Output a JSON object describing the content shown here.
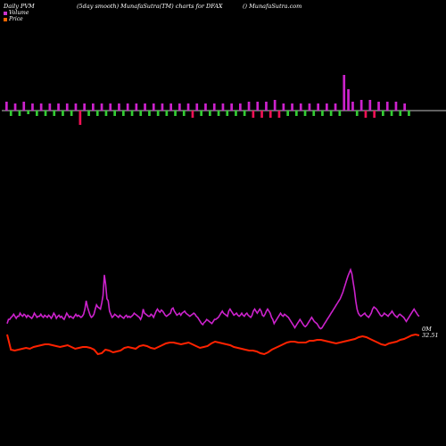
{
  "header": {
    "left": "Daily PVM",
    "center": "(5day smooth) MunafaSutra(TM) charts for DFAX",
    "right": "() MunafaSutra.com"
  },
  "legend": [
    {
      "label": "Volume",
      "color": "#cc33cc"
    },
    {
      "label": "Price",
      "color": "#ff6600"
    }
  ],
  "colors": {
    "up": "#cc22cc",
    "down": "#33cc33",
    "alt_down": "#ee1155",
    "volume_line": "#cc22cc",
    "price_line": "#ff2200"
  },
  "chart_data": {
    "type": "line",
    "series": [
      {
        "name": "Volume",
        "values": [
          48,
          52,
          52,
          54,
          55,
          57,
          55,
          53,
          55,
          55,
          58,
          56,
          55,
          57,
          56,
          54,
          56,
          55,
          54,
          53,
          55,
          58,
          56,
          54,
          55,
          55,
          57,
          55,
          54,
          56,
          55,
          54,
          56,
          55,
          53,
          55,
          58,
          56,
          53,
          55,
          56,
          54,
          55,
          53,
          52,
          55,
          58,
          56,
          54,
          55,
          54,
          53,
          55,
          57,
          55,
          56,
          55,
          54,
          55,
          57,
          62,
          70,
          64,
          60,
          56,
          54,
          55,
          57,
          62,
          66,
          64,
          63,
          62,
          68,
          75,
          95,
          86,
          72,
          70,
          60,
          57,
          54,
          55,
          57,
          56,
          55,
          54,
          56,
          55,
          54,
          53,
          55,
          56,
          54,
          55,
          54,
          55,
          56,
          58,
          57,
          56,
          55,
          54,
          52,
          55,
          62,
          58,
          57,
          56,
          55,
          55,
          57,
          56,
          54,
          57,
          60,
          62,
          60,
          59,
          61,
          60,
          58,
          56,
          55,
          56,
          57,
          58,
          62,
          63,
          60,
          58,
          56,
          57,
          58,
          56,
          58,
          59,
          60,
          58,
          57,
          56,
          55,
          56,
          57,
          58,
          57,
          55,
          54,
          52,
          50,
          48,
          47,
          49,
          50,
          52,
          51,
          50,
          49,
          48,
          50,
          52,
          52,
          53,
          54,
          56,
          58,
          60,
          58,
          57,
          56,
          55,
          60,
          62,
          60,
          58,
          56,
          57,
          58,
          56,
          55,
          56,
          58,
          56,
          55,
          57,
          58,
          56,
          55,
          54,
          56,
          60,
          62,
          60,
          58,
          60,
          62,
          60,
          56,
          55,
          57,
          60,
          62,
          60,
          58,
          54,
          52,
          48,
          50,
          52,
          54,
          56,
          58,
          56,
          55,
          57,
          56,
          55,
          54,
          52,
          50,
          48,
          46,
          44,
          46,
          48,
          50,
          52,
          50,
          48,
          46,
          45,
          46,
          48,
          50,
          52,
          54,
          52,
          50,
          49,
          48,
          46,
          44,
          43,
          44,
          46,
          48,
          50,
          52,
          54,
          56,
          58,
          60,
          62,
          64,
          66,
          68,
          70,
          72,
          75,
          78,
          82,
          86,
          90,
          94,
          97,
          100,
          96,
          88,
          80,
          70,
          62,
          58,
          56,
          55,
          56,
          57,
          58,
          56,
          55,
          54,
          56,
          58,
          62,
          64,
          63,
          62,
          60,
          58,
          56,
          55,
          56,
          58,
          57,
          56,
          55,
          57,
          58,
          60,
          58,
          56,
          55,
          54,
          56,
          57,
          56,
          55,
          54,
          52,
          50,
          52,
          54,
          56,
          58,
          60,
          62,
          60,
          58,
          56,
          55
        ]
      }
    ],
    "volume_bars": [
      {
        "v": 5,
        "up": true
      },
      {
        "v": 3,
        "up": false
      },
      {
        "v": 4,
        "up": true
      },
      {
        "v": 3,
        "up": false
      },
      {
        "v": 5,
        "up": true
      },
      {
        "v": 2,
        "up": false
      },
      {
        "v": 4,
        "up": true
      },
      {
        "v": 3,
        "up": false
      },
      {
        "v": 4,
        "up": true
      },
      {
        "v": 3,
        "up": false
      },
      {
        "v": 4,
        "up": true
      },
      {
        "v": 3,
        "up": false
      },
      {
        "v": 4,
        "up": true
      },
      {
        "v": 3,
        "up": false
      },
      {
        "v": 4,
        "up": true
      },
      {
        "v": 3,
        "up": false
      },
      {
        "v": 4,
        "up": true
      },
      {
        "v": 8,
        "down_red": true
      },
      {
        "v": 4,
        "up": true
      },
      {
        "v": 3,
        "up": false
      },
      {
        "v": 4,
        "up": true
      },
      {
        "v": 3,
        "up": false
      },
      {
        "v": 4,
        "up": true
      },
      {
        "v": 3,
        "up": false
      },
      {
        "v": 4,
        "up": true
      },
      {
        "v": 3,
        "up": false
      },
      {
        "v": 4,
        "up": true
      },
      {
        "v": 3,
        "up": false
      },
      {
        "v": 4,
        "up": true
      },
      {
        "v": 3,
        "up": false
      },
      {
        "v": 4,
        "up": true
      },
      {
        "v": 3,
        "up": false
      },
      {
        "v": 4,
        "up": true
      },
      {
        "v": 3,
        "up": false
      },
      {
        "v": 4,
        "up": true
      },
      {
        "v": 3,
        "up": false
      },
      {
        "v": 4,
        "up": true
      },
      {
        "v": 3,
        "up": false
      },
      {
        "v": 4,
        "up": true
      },
      {
        "v": 3,
        "up": false
      },
      {
        "v": 4,
        "up": true
      },
      {
        "v": 3,
        "up": false
      },
      {
        "v": 4,
        "up": true
      },
      {
        "v": 4,
        "down_red": true
      },
      {
        "v": 4,
        "up": true
      },
      {
        "v": 3,
        "up": false
      },
      {
        "v": 4,
        "up": true
      },
      {
        "v": 3,
        "up": false
      },
      {
        "v": 4,
        "up": true
      },
      {
        "v": 3,
        "up": false
      },
      {
        "v": 4,
        "up": true
      },
      {
        "v": 3,
        "up": false
      },
      {
        "v": 4,
        "up": true
      },
      {
        "v": 3,
        "up": false
      },
      {
        "v": 4,
        "up": true
      },
      {
        "v": 3,
        "up": false
      },
      {
        "v": 5,
        "up": true
      },
      {
        "v": 4,
        "down_red": true
      },
      {
        "v": 5,
        "up": true
      },
      {
        "v": 4,
        "down_red": true
      },
      {
        "v": 5,
        "up": true
      },
      {
        "v": 4,
        "down_red": true
      },
      {
        "v": 6,
        "up": true
      },
      {
        "v": 4,
        "down_red": true
      },
      {
        "v": 4,
        "up": true
      },
      {
        "v": 3,
        "up": false
      },
      {
        "v": 4,
        "up": true
      },
      {
        "v": 3,
        "up": false
      },
      {
        "v": 4,
        "up": true
      },
      {
        "v": 3,
        "up": false
      },
      {
        "v": 4,
        "up": true
      },
      {
        "v": 3,
        "up": false
      },
      {
        "v": 4,
        "up": true
      },
      {
        "v": 3,
        "up": false
      },
      {
        "v": 4,
        "up": true
      },
      {
        "v": 3,
        "up": false
      },
      {
        "v": 4,
        "up": true
      },
      {
        "v": 3,
        "up": false
      },
      {
        "v": 20,
        "up": true
      },
      {
        "v": 12,
        "up": true
      },
      {
        "v": 5,
        "up": true
      },
      {
        "v": 3,
        "up": false
      },
      {
        "v": 6,
        "up": true
      },
      {
        "v": 4,
        "down_red": true
      },
      {
        "v": 6,
        "up": true
      },
      {
        "v": 4,
        "down_red": true
      },
      {
        "v": 5,
        "up": true
      },
      {
        "v": 3,
        "up": false
      },
      {
        "v": 5,
        "up": true
      },
      {
        "v": 3,
        "up": false
      },
      {
        "v": 5,
        "up": true
      },
      {
        "v": 3,
        "up": false
      },
      {
        "v": 4,
        "up": true
      },
      {
        "v": 3,
        "up": false
      }
    ],
    "end_labels": {
      "volume": "0M",
      "price": "32.51"
    }
  }
}
